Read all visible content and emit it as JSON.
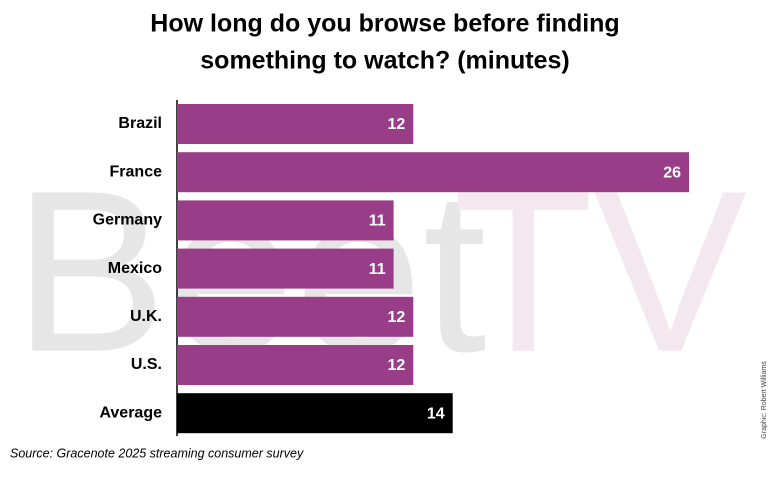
{
  "chart_data": {
    "type": "bar",
    "orientation": "horizontal",
    "title": [
      "How long do you browse before finding",
      "something to watch? (minutes)"
    ],
    "categories": [
      "Brazil",
      "France",
      "Germany",
      "Mexico",
      "U.K.",
      "U.S.",
      "Average"
    ],
    "values": [
      12,
      26,
      11,
      11,
      12,
      12,
      14
    ],
    "colors": [
      "#993d88",
      "#993d88",
      "#993d88",
      "#993d88",
      "#993d88",
      "#993d88",
      "#000000"
    ],
    "source": "Source: Gracenote 2025  streaming consumer survey",
    "credit": "Graphic: Robert Williams",
    "watermark": {
      "left": "Beet",
      "right": "TV"
    }
  }
}
